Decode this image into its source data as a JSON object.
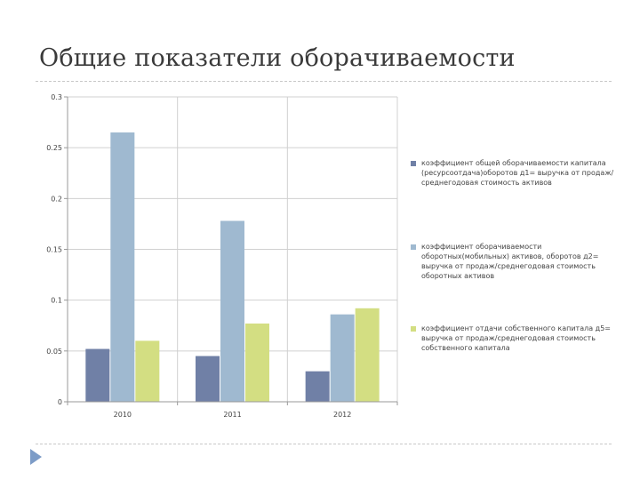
{
  "slide": {
    "title": "Общие показатели оборачиваемости",
    "accent_color": "#7d9cc7"
  },
  "chart_data": {
    "type": "bar",
    "categories": [
      "2010",
      "2011",
      "2012"
    ],
    "series": [
      {
        "name": "коэффициент общей оборачиваемости капитала (ресурсоотдача)оборотов д1= выручка от продаж/среднегодовая стоимость активов",
        "values": [
          0.052,
          0.045,
          0.03
        ],
        "color": "#7080a6"
      },
      {
        "name": "коэффициент оборачиваемости оборотных(мобильных) активов, оборотов д2= выручка от продаж/среднегодовая стоимость оборотных активов",
        "values": [
          0.265,
          0.178,
          0.086
        ],
        "color": "#9fb9d0"
      },
      {
        "name": "коэффициент отдачи собственного капитала д5= выручка от продаж/среднегодовая стоимость собственного капитала",
        "values": [
          0.06,
          0.077,
          0.092
        ],
        "color": "#d3de82"
      }
    ],
    "y_ticks": [
      "0",
      "0.05",
      "0.1",
      "0.15",
      "0.2",
      "0.25",
      "0.3"
    ],
    "ylim": [
      0,
      0.3
    ],
    "grid": true,
    "legend_position": "right",
    "title": "",
    "xlabel": "",
    "ylabel": ""
  }
}
